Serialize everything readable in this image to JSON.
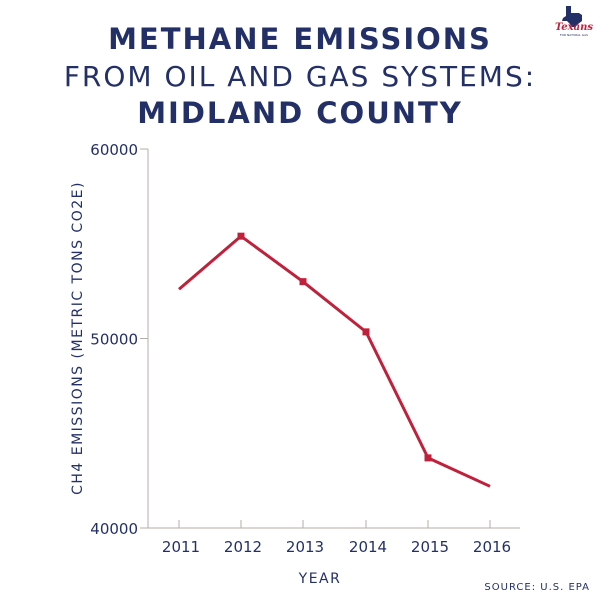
{
  "title": {
    "line1": "METHANE EMISSIONS",
    "line2": "FROM OIL AND GAS SYSTEMS:",
    "line3": "MIDLAND COUNTY"
  },
  "logo": {
    "text": "Texans",
    "subtext": "FOR NATURAL GAS",
    "icon": "texas-map-star-icon"
  },
  "source": "SOURCE: U.S. EPA",
  "colors": {
    "line": "#c0203a",
    "text": "#233068",
    "axis": "#b5aca5"
  },
  "chart_data": {
    "type": "line",
    "title": "METHANE EMISSIONS FROM OIL AND GAS SYSTEMS: MIDLAND COUNTY",
    "xlabel": "YEAR",
    "ylabel": "CH4 EMISSIONS (METRIC TONS CO2E)",
    "categories": [
      "2011",
      "2012",
      "2013",
      "2014",
      "2015",
      "2016"
    ],
    "values": [
      52600,
      55400,
      53000,
      50350,
      43700,
      42200
    ],
    "ylim": [
      40000,
      60000
    ],
    "yticks": [
      "40000",
      "50000",
      "60000"
    ],
    "grid": false,
    "legend": "none"
  }
}
